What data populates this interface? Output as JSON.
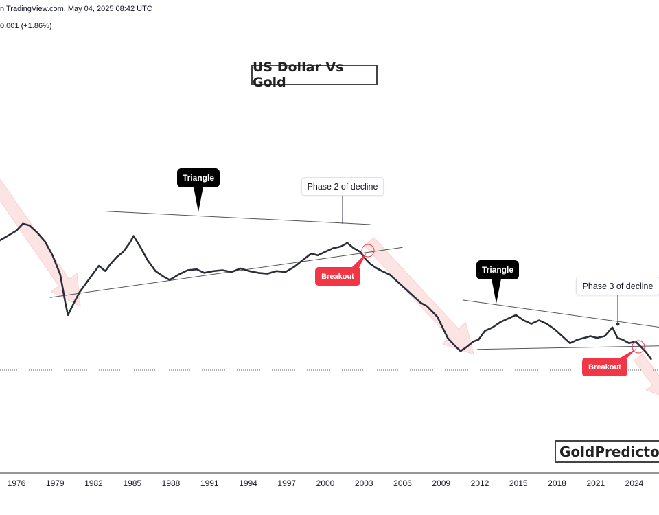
{
  "header": {
    "line1": "n TradingView.com, May 04, 2025 08:42 UTC",
    "line2": "0.001 (+1.86%)"
  },
  "colors": {
    "price_line": "#2a2e39",
    "trendline": "#555555",
    "arrow_fill": "#fde4e4",
    "breakout_red": "#f23645",
    "callout_black": "#000000",
    "axis_text": "#131722"
  },
  "chart_data": {
    "type": "line",
    "title": "US Dollar Vs Gold",
    "xlabel": "",
    "ylabel": "",
    "x_ticks": [
      "1976",
      "1979",
      "1982",
      "1985",
      "1988",
      "1991",
      "1994",
      "1997",
      "2000",
      "2003",
      "2006",
      "2009",
      "2012",
      "2015",
      "2018",
      "2021",
      "2024"
    ],
    "xlim": [
      1974.5,
      2026.5
    ],
    "y_axis_visible": false,
    "grid": false,
    "series": [
      {
        "values_note_units": "relative (no value axis printed)",
        "x": [
          1974.6,
          1975.3,
          1976.0,
          1976.5,
          1977.0,
          1977.6,
          1978.2,
          1978.8,
          1979.4,
          1979.8,
          1980.0,
          1980.4,
          1980.9,
          1981.5,
          1982.0,
          1982.4,
          1982.9,
          1983.3,
          1983.8,
          1984.3,
          1984.8,
          1985.1,
          1985.6,
          1986.2,
          1986.8,
          1987.4,
          1987.9,
          1988.6,
          1989.3,
          1990.0,
          1990.6,
          1991.3,
          1992.0,
          1992.7,
          1993.4,
          1994.1,
          1994.8,
          1995.5,
          1996.2,
          1996.9,
          1997.6,
          1998.2,
          1998.9,
          1999.4,
          2000.0,
          2000.6,
          2001.2,
          2001.7,
          2002.2,
          2002.7,
          2003.1,
          2003.5,
          2003.9,
          2004.4,
          2005.0,
          2005.6,
          2006.2,
          2006.8,
          2007.4,
          2007.9,
          2008.3,
          2008.7,
          2009.1,
          2009.5,
          2010.0,
          2010.5,
          2011.0,
          2011.5,
          2011.9,
          2012.4,
          2013.0,
          2013.6,
          2014.2,
          2014.8,
          2015.4,
          2016.0,
          2016.6,
          2017.2,
          2017.8,
          2018.4,
          2019.0,
          2019.6,
          2020.1,
          2020.6,
          2021.1,
          2021.7,
          2022.3,
          2022.7,
          2023.1,
          2023.6,
          2024.1,
          2024.5,
          2024.9,
          2025.3
        ],
        "values": [
          0.24,
          0.3,
          0.36,
          0.44,
          0.42,
          0.34,
          0.24,
          0.08,
          -0.14,
          -0.46,
          -0.6,
          -0.48,
          -0.34,
          -0.22,
          -0.12,
          -0.04,
          -0.1,
          -0.02,
          0.06,
          0.12,
          0.22,
          0.3,
          0.18,
          0.02,
          -0.1,
          -0.16,
          -0.2,
          -0.14,
          -0.09,
          -0.08,
          -0.12,
          -0.1,
          -0.09,
          -0.11,
          -0.07,
          -0.1,
          -0.12,
          -0.13,
          -0.1,
          -0.11,
          -0.05,
          0.02,
          0.1,
          0.08,
          0.12,
          0.16,
          0.18,
          0.22,
          0.16,
          0.12,
          0.04,
          -0.02,
          -0.06,
          -0.1,
          -0.14,
          -0.22,
          -0.3,
          -0.38,
          -0.46,
          -0.5,
          -0.56,
          -0.62,
          -0.74,
          -0.86,
          -0.94,
          -1.01,
          -0.96,
          -0.9,
          -0.88,
          -0.78,
          -0.74,
          -0.68,
          -0.64,
          -0.6,
          -0.66,
          -0.7,
          -0.66,
          -0.7,
          -0.76,
          -0.84,
          -0.92,
          -0.88,
          -0.86,
          -0.84,
          -0.86,
          -0.84,
          -0.74,
          -0.86,
          -0.88,
          -0.92,
          -0.9,
          -0.96,
          -1.02,
          -1.1
        ]
      }
    ],
    "annotations": {
      "triangle_1": "Triangle",
      "triangle_2": "Triangle",
      "phase_2": "Phase 2 of decline",
      "phase_3": "Phase 3 of decline",
      "breakout_1": "Breakout",
      "breakout_2": "Breakout"
    },
    "watermark": "GoldPredictors"
  }
}
